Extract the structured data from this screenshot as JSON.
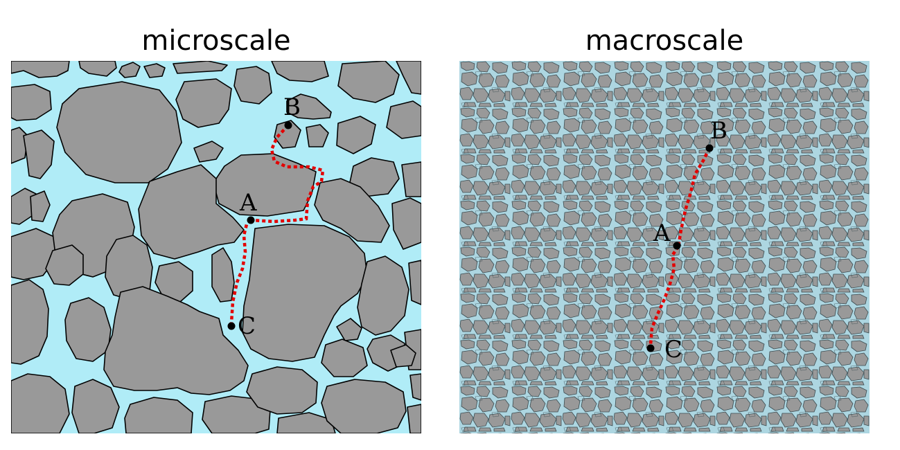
{
  "panels": {
    "micro": {
      "title": "microscale",
      "points": [
        {
          "label": "A"
        },
        {
          "label": "B"
        },
        {
          "label": "C"
        }
      ]
    },
    "macro": {
      "title": "macroscale",
      "points": [
        {
          "label": "A"
        },
        {
          "label": "B"
        },
        {
          "label": "C"
        }
      ]
    }
  },
  "colors": {
    "pore_fluid_micro": "#b0ecf7",
    "pore_fluid_macro": "#add6e1",
    "grain": "#999999",
    "grain_outline": "#000000",
    "path": "#e30000",
    "point": "#000000"
  }
}
